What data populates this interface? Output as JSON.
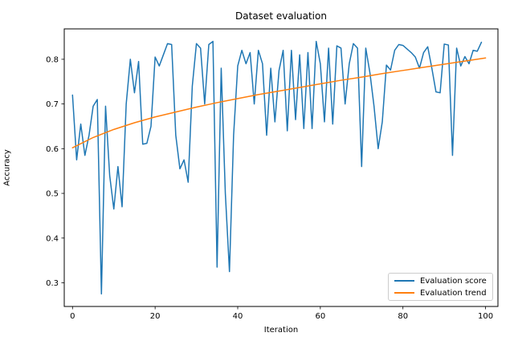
{
  "figure": {
    "title": "Dataset evaluation",
    "background": "#ffffff",
    "spine_color": "#000000"
  },
  "chart_data": {
    "type": "line",
    "title": "Dataset evaluation",
    "xlabel": "Iteration",
    "ylabel": "Accuracy",
    "xlim": [
      -2.0,
      103.0
    ],
    "ylim": [
      0.247,
      0.868
    ],
    "x_ticks": [
      0,
      20,
      40,
      60,
      80,
      100
    ],
    "y_ticks": [
      0.3,
      0.4,
      0.5,
      0.6,
      0.7,
      0.8
    ],
    "grid": false,
    "legend_position": "lower right",
    "series": [
      {
        "name": "Evaluation score",
        "color": "#1f77b4",
        "x_start": 0,
        "x_step": 1,
        "values": [
          0.72,
          0.575,
          0.655,
          0.585,
          0.63,
          0.695,
          0.71,
          0.275,
          0.695,
          0.54,
          0.465,
          0.56,
          0.47,
          0.7,
          0.8,
          0.725,
          0.795,
          0.61,
          0.612,
          0.65,
          0.805,
          0.785,
          0.81,
          0.835,
          0.833,
          0.63,
          0.555,
          0.575,
          0.525,
          0.74,
          0.835,
          0.825,
          0.7,
          0.833,
          0.84,
          0.335,
          0.78,
          0.5,
          0.325,
          0.63,
          0.785,
          0.82,
          0.79,
          0.815,
          0.7,
          0.82,
          0.79,
          0.63,
          0.78,
          0.66,
          0.775,
          0.82,
          0.64,
          0.82,
          0.665,
          0.81,
          0.645,
          0.815,
          0.645,
          0.84,
          0.79,
          0.66,
          0.825,
          0.655,
          0.83,
          0.825,
          0.7,
          0.79,
          0.835,
          0.825,
          0.56,
          0.825,
          0.77,
          0.695,
          0.6,
          0.66,
          0.787,
          0.776,
          0.82,
          0.833,
          0.831,
          0.823,
          0.815,
          0.805,
          0.78,
          0.815,
          0.828,
          0.78,
          0.727,
          0.725,
          0.834,
          0.832,
          0.585,
          0.825,
          0.785,
          0.806,
          0.79,
          0.82,
          0.818,
          0.838
        ]
      },
      {
        "name": "Evaluation trend",
        "color": "#ff7f0e",
        "x": [
          0,
          5,
          10,
          15,
          20,
          25,
          30,
          35,
          40,
          45,
          50,
          55,
          60,
          65,
          70,
          75,
          80,
          85,
          90,
          95,
          100
        ],
        "values": [
          0.602,
          0.625,
          0.643,
          0.658,
          0.671,
          0.682,
          0.693,
          0.703,
          0.712,
          0.721,
          0.729,
          0.737,
          0.745,
          0.753,
          0.76,
          0.768,
          0.775,
          0.782,
          0.789,
          0.796,
          0.803
        ]
      }
    ]
  },
  "legend": {
    "items": [
      {
        "label": "Evaluation score",
        "color": "#1f77b4"
      },
      {
        "label": "Evaluation trend",
        "color": "#ff7f0e"
      }
    ]
  }
}
